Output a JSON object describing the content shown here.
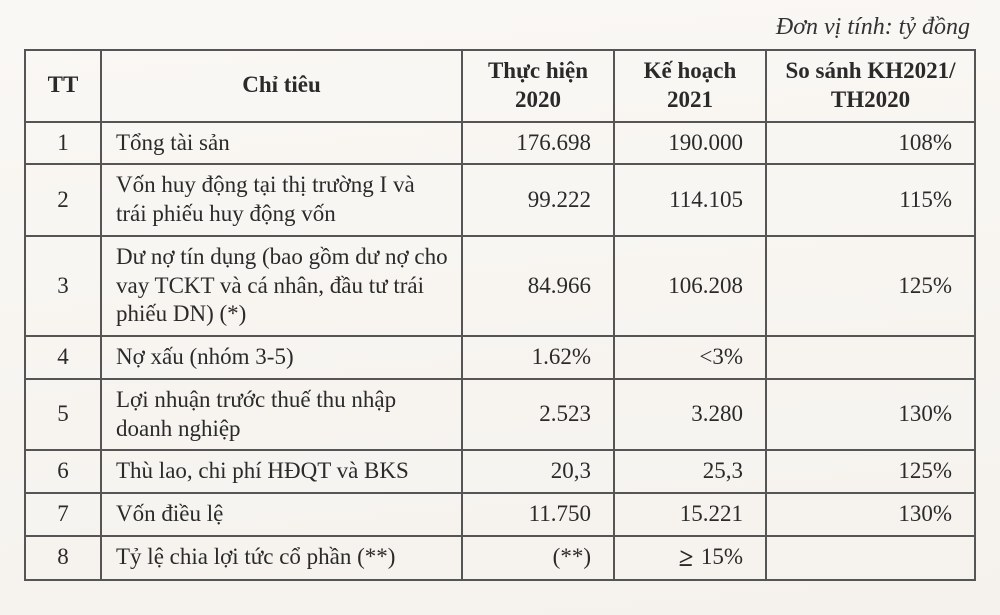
{
  "unit_label": "Đơn vị tính: tỷ đồng",
  "table": {
    "columns": {
      "tt": "TT",
      "name": "Chỉ tiêu",
      "th2020": "Thực hiện 2020",
      "kh2021": "Kế hoạch 2021",
      "sosanh": "So sánh KH2021/ TH2020"
    },
    "col_widths_pct": [
      8,
      38,
      16,
      16,
      22
    ],
    "header_align": "center",
    "body_fontsize_pt": 17,
    "header_fontsize_pt": 17,
    "border_color": "#555555",
    "background_color": "#faf8f4",
    "rows": [
      {
        "tt": "1",
        "name": "Tổng tài sản",
        "th2020": "176.698",
        "kh2021": "190.000",
        "sosanh": "108%"
      },
      {
        "tt": "2",
        "name": "Vốn huy động tại thị trường I và trái phiếu huy động vốn",
        "th2020": "99.222",
        "kh2021": "114.105",
        "sosanh": "115%"
      },
      {
        "tt": "3",
        "name": "Dư nợ tín dụng (bao gồm dư nợ cho vay TCKT và cá nhân, đầu tư trái phiếu DN) (*)",
        "th2020": "84.966",
        "kh2021": "106.208",
        "sosanh": "125%"
      },
      {
        "tt": "4",
        "name": "Nợ xấu (nhóm 3-5)",
        "th2020": "1.62%",
        "kh2021": "<3%",
        "sosanh": ""
      },
      {
        "tt": "5",
        "name": "Lợi nhuận trước thuế thu nhập doanh nghiệp",
        "th2020": "2.523",
        "kh2021": "3.280",
        "sosanh": "130%"
      },
      {
        "tt": "6",
        "name": "Thù lao, chi phí HĐQT và BKS",
        "th2020": "20,3",
        "kh2021": "25,3",
        "sosanh": "125%"
      },
      {
        "tt": "7",
        "name": "Vốn điều lệ",
        "th2020": "11.750",
        "kh2021": "15.221",
        "sosanh": "130%"
      },
      {
        "tt": "8",
        "name": "Tỷ lệ chia lợi tức cổ phần (**)",
        "th2020": "(**)",
        "kh2021_prefix_symbol": "≥",
        "kh2021": "15%",
        "sosanh": ""
      }
    ]
  }
}
